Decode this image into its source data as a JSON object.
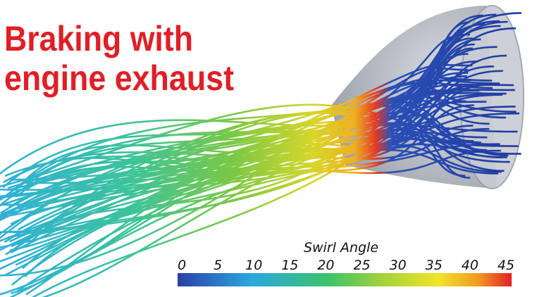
{
  "title": [
    "Braking with",
    "engine exhaust"
  ],
  "colorbar": {
    "label": "Swirl Angle",
    "ticks": [
      "0",
      "5",
      "10",
      "15",
      "20",
      "25",
      "30",
      "35",
      "40",
      "45"
    ]
  }
}
